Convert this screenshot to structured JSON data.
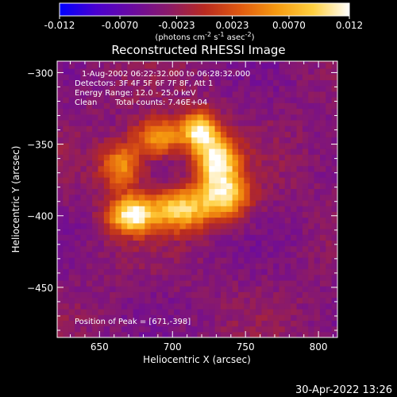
{
  "chart_data": {
    "type": "heatmap",
    "title": "Reconstructed RHESSI Image",
    "xlabel": "Heliocentric X (arcsec)",
    "ylabel": "Heliocentric Y (arcsec)",
    "xlim": [
      621,
      813
    ],
    "ylim": [
      -485,
      -292
    ],
    "x_ticks": [
      650,
      700,
      750,
      800
    ],
    "y_ticks": [
      -300,
      -350,
      -400,
      -450
    ],
    "colorbar": {
      "range": [
        -0.012,
        0.012
      ],
      "ticks": [
        "-0.012",
        "-0.0070",
        "-0.0023",
        "0.0023",
        "0.0070",
        "0.012"
      ],
      "unit_label": "(photons cm-2 s-1 asec-2)",
      "colormap": [
        "#0000ff",
        "#4a00d0",
        "#6a0aa0",
        "#8a1a6a",
        "#b82a20",
        "#e05a10",
        "#f59a10",
        "#ffd040",
        "#ffffff"
      ]
    },
    "annotations": [
      "1-Aug-2002 06:22:32.000 to 06:28:32.000",
      "Detectors: 3F 4F 5F 6F 7F 8F, Att 1",
      "Energy Range: 12.0 - 25.0 keV",
      "Clean",
      "Total counts: 7.46E+04"
    ],
    "peak_label": "Position of Peak = [671,-398]",
    "peak": {
      "x": 671,
      "y": -398
    },
    "source_components": [
      {
        "x": 672,
        "y": -399,
        "peak": 0.012,
        "sx": 11,
        "sy": 9
      },
      {
        "x": 705,
        "y": -395,
        "peak": 0.0095,
        "sx": 13,
        "sy": 10
      },
      {
        "x": 735,
        "y": -385,
        "peak": 0.01,
        "sx": 12,
        "sy": 12
      },
      {
        "x": 730,
        "y": -360,
        "peak": 0.011,
        "sx": 10,
        "sy": 11
      },
      {
        "x": 718,
        "y": -340,
        "peak": 0.0105,
        "sx": 9,
        "sy": 9
      },
      {
        "x": 690,
        "y": -345,
        "peak": 0.0075,
        "sx": 11,
        "sy": 9
      },
      {
        "x": 665,
        "y": -365,
        "peak": 0.0065,
        "sx": 10,
        "sy": 11
      }
    ],
    "background_level": -0.0035
  },
  "footer": {
    "timestamp": "30-Apr-2022 13:26"
  },
  "colors": {
    "background": "#000000",
    "foreground": "#ffffff"
  }
}
